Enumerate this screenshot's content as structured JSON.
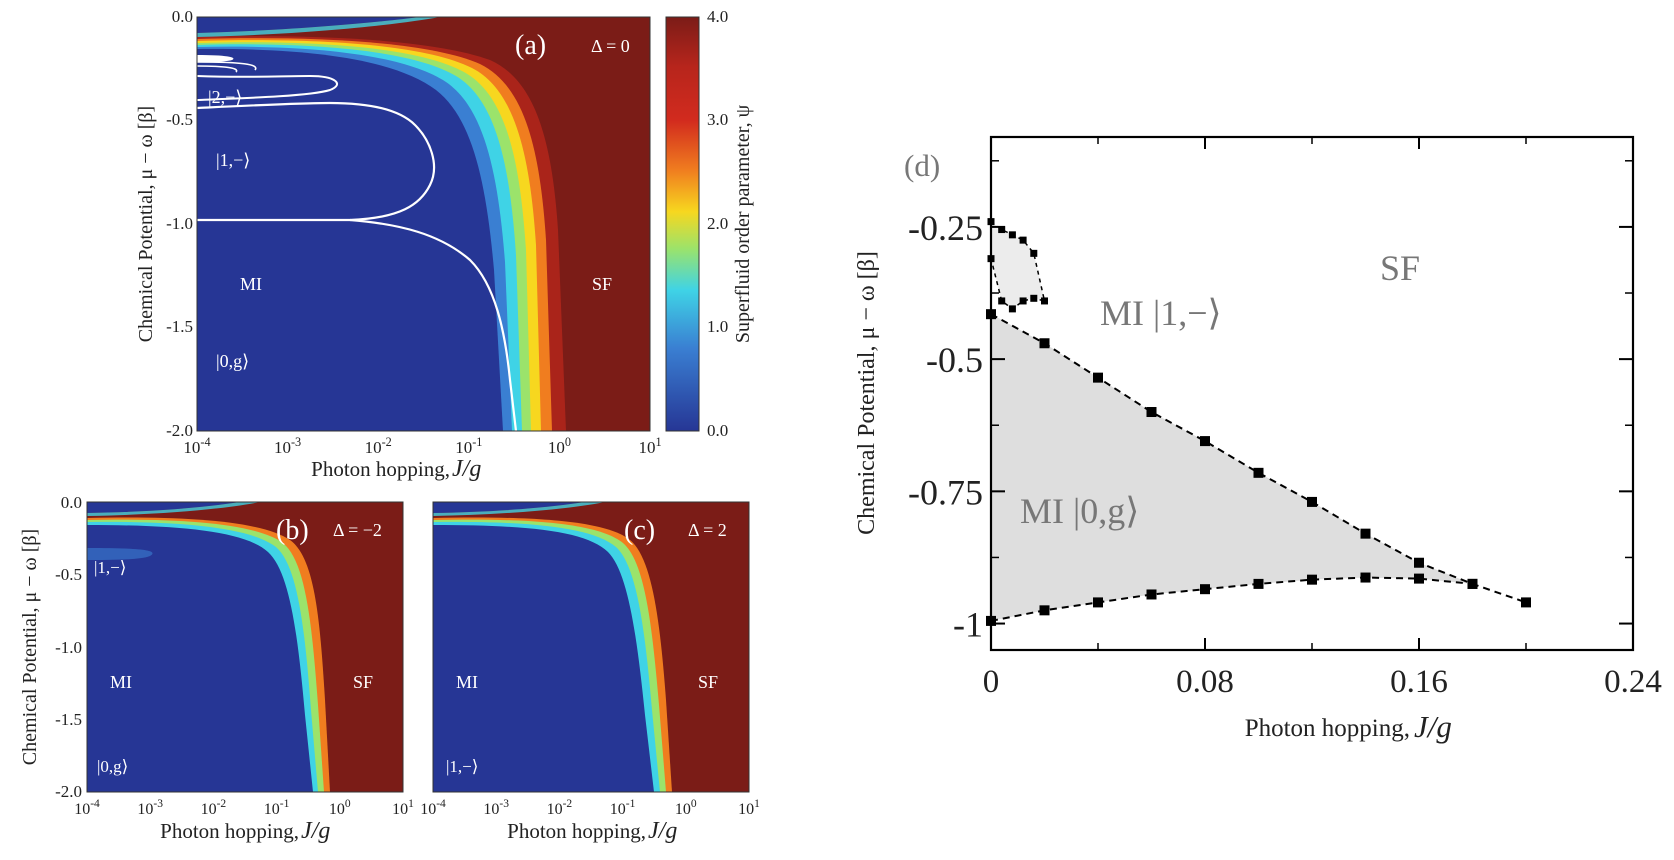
{
  "chart_data": [
    {
      "panel": "a",
      "type": "heatmap",
      "panel_label": "(a)",
      "delta_label": "Δ = 0",
      "xlabel_text": "Photon hopping, ",
      "xlabel_var": "J/g",
      "ylabel": "Chemical Potential, μ − ω [β]",
      "x_scale": "log",
      "xlim_exp": [
        -4,
        1
      ],
      "x_tick_exponents": [
        -4,
        -3,
        -2,
        -1,
        0,
        1
      ],
      "x_tick_base": "10",
      "x_tick_sups": [
        "-4",
        "-3",
        "-2",
        "-1",
        "0",
        "1"
      ],
      "ylim": [
        -2.0,
        0.0
      ],
      "y_tick_labels": [
        "0.0",
        "-0.5",
        "-1.0",
        "-1.5",
        "-2.0"
      ],
      "region_labels": [
        "MI",
        "SF",
        "|0,g⟩",
        "|1,−⟩",
        "|2,−⟩"
      ],
      "colorbar": {
        "label": "Superfluid order parameter, ψ",
        "range": [
          0.0,
          4.0
        ],
        "tick_labels": [
          "4.0",
          "3.0",
          "2.0",
          "1.0",
          "0.0"
        ],
        "colors": [
          "#7b1c17",
          "#d22b1e",
          "#f07d1f",
          "#f7d71f",
          "#9be36b",
          "#3fd3e6",
          "#3a7fd2",
          "#263695"
        ]
      },
      "phase_boundary_log10_jc": [
        -1.2,
        -0.5,
        -0.25,
        -0.1,
        -0.2
      ]
    },
    {
      "panel": "b",
      "type": "heatmap",
      "panel_label": "(b)",
      "delta_label": "Δ = −2",
      "xlabel_text": "Photon hopping, ",
      "xlabel_var": "J/g",
      "ylabel": "Chemical Potential, μ − ω [β]",
      "x_scale": "log",
      "xlim_exp": [
        -4,
        1
      ],
      "x_tick_base": "10",
      "x_tick_sups": [
        "-4",
        "-3",
        "-2",
        "-1",
        "0",
        "1"
      ],
      "ylim": [
        -2.0,
        0.0
      ],
      "y_tick_labels": [
        "0.0",
        "-0.5",
        "-1.0",
        "-1.5",
        "-2.0"
      ],
      "region_labels": [
        "MI",
        "SF",
        "|0,g⟩",
        "|1,−⟩"
      ]
    },
    {
      "panel": "c",
      "type": "heatmap",
      "panel_label": "(c)",
      "delta_label": "Δ = 2",
      "xlabel_text": "Photon hopping, ",
      "xlabel_var": "J/g",
      "x_scale": "log",
      "xlim_exp": [
        -4,
        1
      ],
      "x_tick_base": "10",
      "x_tick_sups": [
        "-4",
        "-3",
        "-2",
        "-1",
        "0",
        "1"
      ],
      "ylim": [
        -2.0,
        0.0
      ],
      "region_labels": [
        "MI",
        "SF",
        "|1,−⟩"
      ]
    },
    {
      "panel": "d",
      "type": "scatter",
      "panel_label": "(d)",
      "xlabel_text": "Photon hopping, ",
      "xlabel_var": "J/g",
      "ylabel": "Chemical Potential, μ − ω [β]",
      "xlim": [
        0,
        0.24
      ],
      "ylim": [
        -1.05,
        -0.08
      ],
      "x_ticks": [
        0,
        0.08,
        0.16,
        0.24
      ],
      "x_tick_labels": [
        "0",
        "0.08",
        "0.16",
        "0.24"
      ],
      "y_ticks": [
        -0.25,
        -0.5,
        -0.75,
        -1.0
      ],
      "y_tick_labels": [
        "-0.25",
        "-0.5",
        "-0.75",
        "-1"
      ],
      "region_labels": [
        "SF",
        "MI |1,−⟩",
        "MI |0,g⟩"
      ],
      "series": [
        {
          "name": "upper boundary |0,g⟩",
          "x": [
            0,
            0.02,
            0.04,
            0.06,
            0.08,
            0.1,
            0.12,
            0.14,
            0.16,
            0.18,
            0.2
          ],
          "y": [
            -0.415,
            -0.47,
            -0.535,
            -0.6,
            -0.655,
            -0.715,
            -0.77,
            -0.83,
            -0.885,
            -0.925,
            -0.96
          ]
        },
        {
          "name": "lower boundary |0,g⟩",
          "x": [
            0,
            0.02,
            0.04,
            0.06,
            0.08,
            0.1,
            0.12,
            0.14,
            0.16,
            0.18
          ],
          "y": [
            -0.995,
            -0.975,
            -0.96,
            -0.945,
            -0.935,
            -0.925,
            -0.917,
            -0.913,
            -0.915,
            -0.925
          ]
        },
        {
          "name": "|1,−⟩ lobe",
          "x": [
            0,
            0.004,
            0.008,
            0.012,
            0.016,
            0.02,
            0.016,
            0.012,
            0.008,
            0.004,
            0
          ],
          "y": [
            -0.24,
            -0.255,
            -0.265,
            -0.275,
            -0.3,
            -0.39,
            -0.385,
            -0.39,
            -0.405,
            -0.39,
            -0.31
          ]
        }
      ]
    }
  ]
}
